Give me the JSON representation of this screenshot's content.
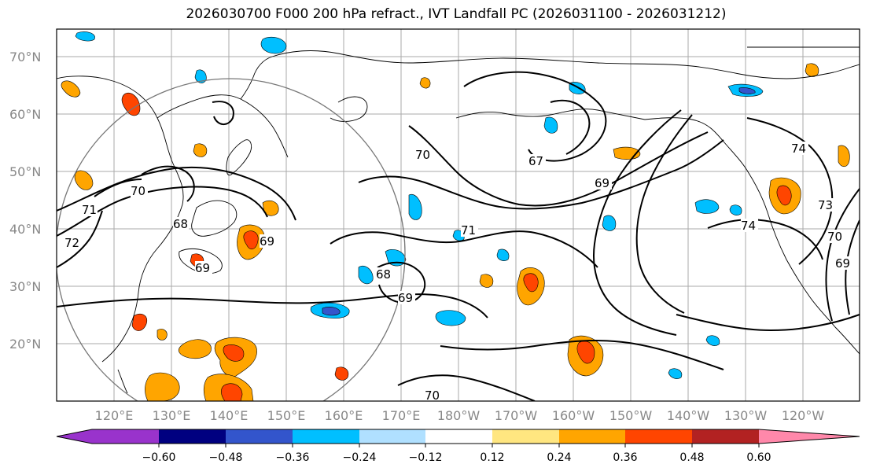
{
  "title": "2026030700 F000 200 hPa refract., IVT Landfall PC (2026031100 - 2026031212)",
  "lat_labels": [
    "70°N",
    "60°N",
    "50°N",
    "40°N",
    "30°N",
    "20°N"
  ],
  "lon_labels": [
    "120°E",
    "130°E",
    "140°E",
    "150°E",
    "160°E",
    "170°E",
    "180°W",
    "170°W",
    "160°W",
    "150°W",
    "140°W",
    "130°W",
    "120°W"
  ],
  "contour_labels": [
    "70",
    "71",
    "72",
    "68",
    "69",
    "69",
    "68",
    "69",
    "71",
    "70",
    "67",
    "69",
    "74",
    "74",
    "73",
    "70",
    "69",
    "70"
  ],
  "colorbar": {
    "ticks": [
      "−0.60",
      "−0.48",
      "−0.36",
      "−0.24",
      "−0.12",
      "0.12",
      "0.24",
      "0.36",
      "0.48",
      "0.60"
    ],
    "colors": [
      "#9933cc",
      "#000080",
      "#3355cc",
      "#00bfff",
      "#b0e0ff",
      "#ffffff",
      "#ffe680",
      "#ffa500",
      "#ff4500",
      "#b22222",
      "#ff88aa"
    ]
  }
}
